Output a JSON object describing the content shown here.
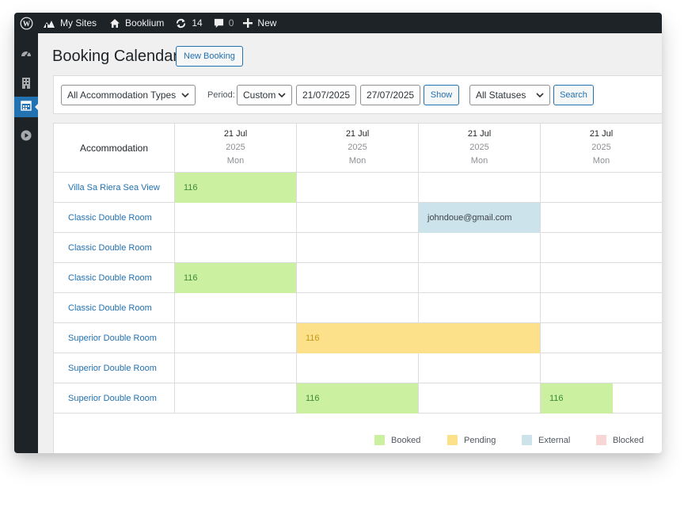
{
  "colors": {
    "booked": "#cbf0a0",
    "booked_text": "#3f8a3a",
    "pending": "#fde18a",
    "pending_text": "#c49a1b",
    "external": "#cde3ec",
    "external_text": "#3c434a",
    "blocked": "#f9d6d6",
    "accent": "#2271b1"
  },
  "adminbar": {
    "wp_icon": "wordpress-logo-icon",
    "my_sites": "My Sites",
    "site_name": "Booklium",
    "updates_count": "14",
    "comments_count": "0",
    "new_label": "New"
  },
  "sidemenu": {
    "items": [
      {
        "icon": "dashboard-icon"
      },
      {
        "icon": "building-icon"
      },
      {
        "icon": "calendar-icon",
        "active": true
      },
      {
        "icon": "play-icon"
      }
    ]
  },
  "page": {
    "title": "Booking Calendar",
    "new_booking_label": "New Booking"
  },
  "filters": {
    "accommodation_type": "All Accommodation Types",
    "period_label": "Period:",
    "period_value": "Custom",
    "date_from": "21/07/2025",
    "date_to": "27/07/2025",
    "show_label": "Show",
    "status": "All Statuses",
    "search_label": "Search"
  },
  "calendar": {
    "header_label": "Accommodation",
    "days": [
      {
        "date": "21 Jul",
        "year": "2025",
        "weekday": "Mon"
      },
      {
        "date": "21 Jul",
        "year": "2025",
        "weekday": "Mon"
      },
      {
        "date": "21 Jul",
        "year": "2025",
        "weekday": "Mon"
      },
      {
        "date": "21 Jul",
        "year": "2025",
        "weekday": "Mon"
      }
    ],
    "rows": [
      "Villa Sa Riera Sea View",
      "Classic Double Room",
      "Classic Double Room",
      "Classic Double Room",
      "Classic Double Room",
      "Superior Double Room",
      "Superior Double Room",
      "Superior Double Room"
    ],
    "bookings": [
      {
        "row": 0,
        "start_day": 0,
        "days": 1,
        "status": "booked",
        "label": "116"
      },
      {
        "row": 1,
        "start_day": 2,
        "days": 1,
        "status": "external",
        "label": "johndoue@gmail.com"
      },
      {
        "row": 3,
        "start_day": 0,
        "days": 1,
        "status": "booked",
        "label": "116"
      },
      {
        "row": 5,
        "start_day": 1,
        "days": 2,
        "status": "pending",
        "label": "116"
      },
      {
        "row": 7,
        "start_day": 1,
        "days": 1,
        "status": "booked",
        "label": "116"
      },
      {
        "row": 7,
        "start_day": 3,
        "days": 0.6,
        "status": "booked",
        "label": "116"
      }
    ]
  },
  "legend": {
    "booked": "Booked",
    "pending": "Pending",
    "external": "External",
    "blocked": "Blocked"
  }
}
